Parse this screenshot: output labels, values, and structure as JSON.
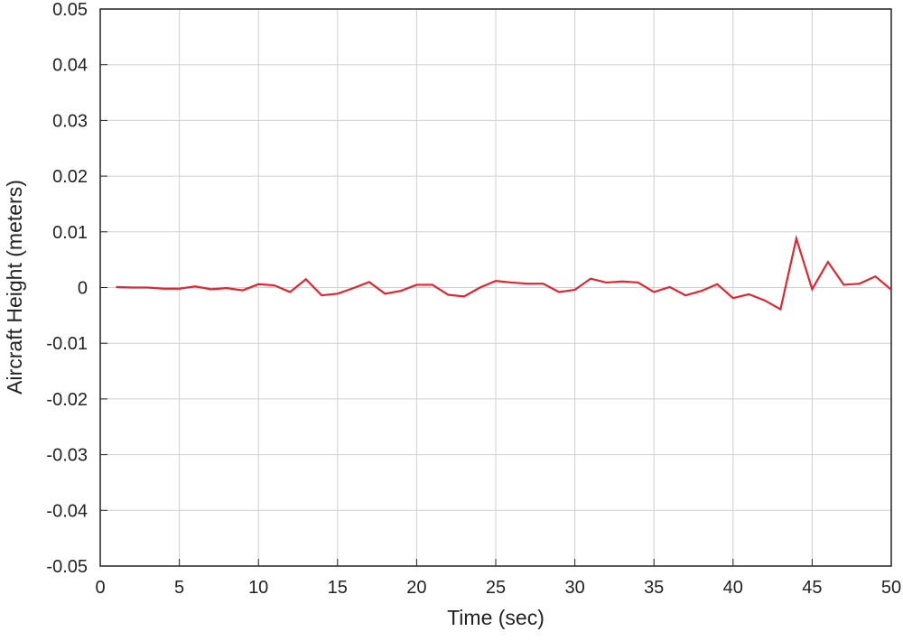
{
  "chart_data": {
    "type": "line",
    "x_label": "Time (sec)",
    "y_label": "Aircraft Height (meters)",
    "x": [
      1,
      2,
      3,
      4,
      5,
      6,
      7,
      8,
      9,
      10,
      11,
      12,
      13,
      14,
      15,
      16,
      17,
      18,
      19,
      20,
      21,
      22,
      23,
      24,
      25,
      26,
      27,
      28,
      29,
      30,
      31,
      32,
      33,
      34,
      35,
      36,
      37,
      38,
      39,
      40,
      41,
      42,
      43,
      44,
      45,
      46,
      47,
      48,
      49,
      50
    ],
    "series": [
      {
        "name": "Aircraft Height",
        "color": "#e3262e",
        "values": [
          0.0001,
          0,
          0,
          -0.0002,
          -0.0002,
          0.0002,
          -0.0003,
          -0.0001,
          -0.0005,
          0.0006,
          0.0004,
          -0.0008,
          0.0015,
          -0.0014,
          -0.0011,
          -0.0001,
          0.001,
          -0.0011,
          -0.0006,
          0.0005,
          0.0005,
          -0.0013,
          -0.0016,
          0,
          0.0012,
          0.0009,
          0.0007,
          0.0007,
          -0.0008,
          -0.0004,
          0.0016,
          0.0009,
          0.0011,
          0.0009,
          -0.0008,
          0.0001,
          -0.0014,
          -0.0006,
          0.0006,
          -0.0019,
          -0.0012,
          -0.0023,
          -0.0039,
          0.0088,
          -0.0003,
          0.0046,
          0.0005,
          0.0007,
          0.002,
          -0.0004
        ]
      }
    ],
    "xlim": [
      0,
      50
    ],
    "xticks": [
      0,
      5,
      10,
      15,
      20,
      25,
      30,
      35,
      40,
      45,
      50
    ],
    "ylim": [
      -0.05,
      0.05
    ],
    "yticks": [
      -0.05,
      -0.04,
      -0.03,
      -0.02,
      -0.01,
      0,
      0.01,
      0.02,
      0.03,
      0.04,
      0.05
    ],
    "grid": true
  }
}
